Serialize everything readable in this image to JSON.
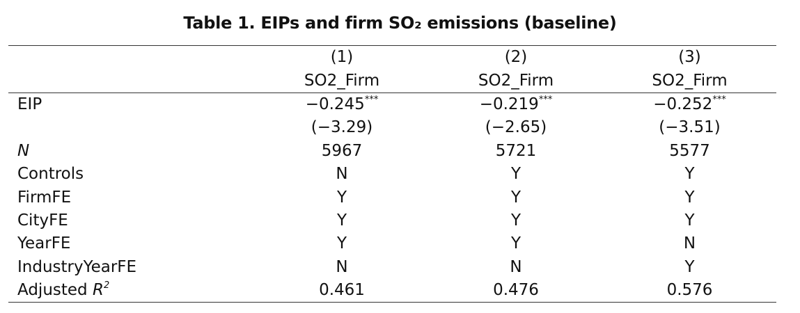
{
  "title": "Table 1. EIPs and firm SO₂ emissions (baseline)",
  "columns": [
    {
      "number": "(1)",
      "dependent": "SO2_Firm"
    },
    {
      "number": "(2)",
      "dependent": "SO2_Firm"
    },
    {
      "number": "(3)",
      "dependent": "SO2_Firm"
    }
  ],
  "coefficients": [
    {
      "label": "EIP",
      "estimates": [
        {
          "coef": "−0.245",
          "stars": "***",
          "t": "(−3.29)"
        },
        {
          "coef": "−0.219",
          "stars": "***",
          "t": "(−2.65)"
        },
        {
          "coef": "−0.252",
          "stars": "***",
          "t": "(−3.51)"
        }
      ]
    }
  ],
  "stats": [
    {
      "label": "N",
      "italic": true,
      "values": [
        "5967",
        "5721",
        "5577"
      ]
    },
    {
      "label": "Controls",
      "values": [
        "N",
        "Y",
        "Y"
      ]
    },
    {
      "label": "FirmFE",
      "values": [
        "Y",
        "Y",
        "Y"
      ]
    },
    {
      "label": "CityFE",
      "values": [
        "Y",
        "Y",
        "Y"
      ]
    },
    {
      "label": "YearFE",
      "values": [
        "Y",
        "Y",
        "N"
      ]
    },
    {
      "label": "IndustryYearFE",
      "values": [
        "N",
        "N",
        "Y"
      ]
    }
  ],
  "r2": {
    "label": "Adjusted",
    "symbol": "R",
    "power": "2",
    "values": [
      "0.461",
      "0.476",
      "0.576"
    ]
  }
}
